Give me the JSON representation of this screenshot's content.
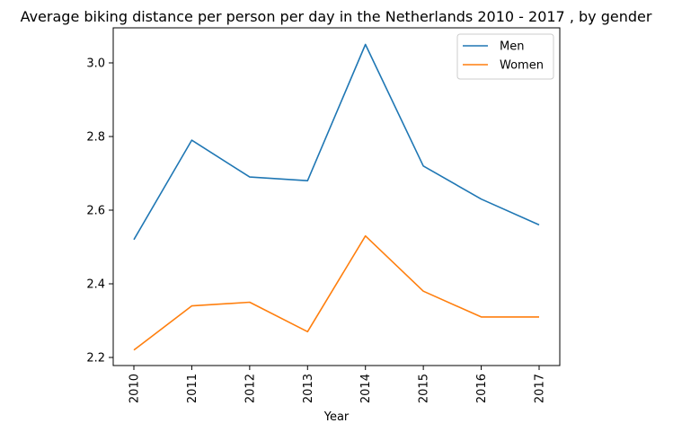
{
  "chart_data": {
    "type": "line",
    "title": "Average biking distance per person per day in the Netherlands 2010 - 2017 , by gender",
    "xlabel": "Year",
    "ylabel": "",
    "categories": [
      "2010",
      "2011",
      "2012",
      "2013",
      "2014",
      "2015",
      "2016",
      "2017"
    ],
    "series": [
      {
        "name": "Men",
        "color": "#1f77b4",
        "values": [
          2.52,
          2.79,
          2.69,
          2.68,
          3.05,
          2.72,
          2.63,
          2.56
        ]
      },
      {
        "name": "Women",
        "color": "#ff7f0e",
        "values": [
          2.22,
          2.34,
          2.35,
          2.27,
          2.53,
          2.38,
          2.31,
          2.31
        ]
      }
    ],
    "ylim": [
      2.2,
      3.1
    ],
    "yticks": [
      2.2,
      2.4,
      2.6,
      2.8,
      3.0
    ],
    "ytick_labels": [
      "2.2",
      "2.4",
      "2.6",
      "2.8",
      "3.0"
    ],
    "grid": false,
    "legend_position": "top-right"
  }
}
